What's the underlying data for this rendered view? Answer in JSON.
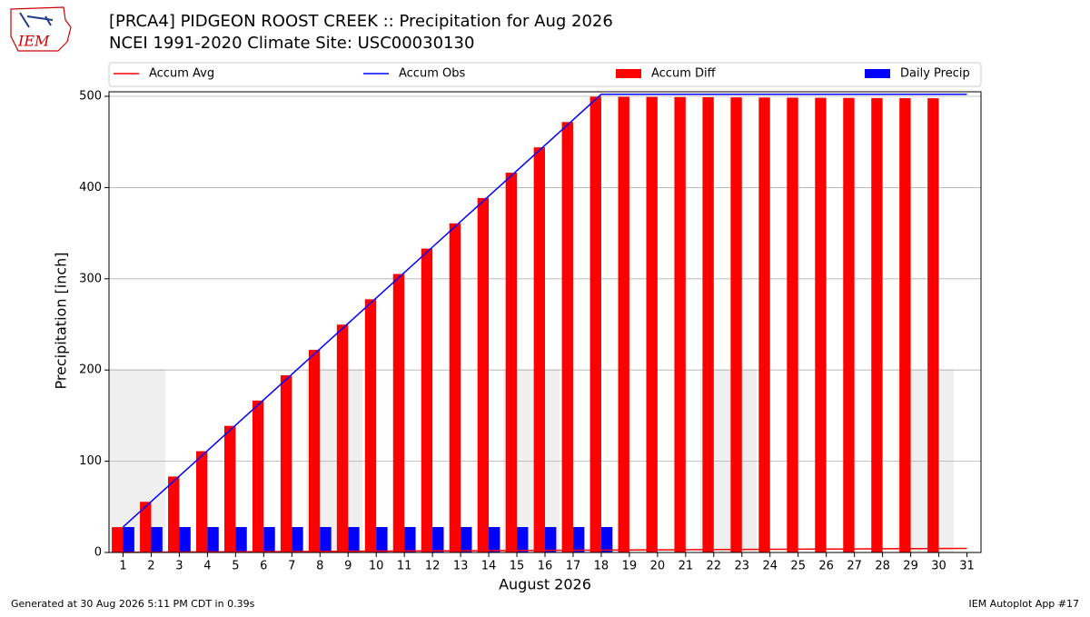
{
  "logo_text": "IEM",
  "footer_left": "Generated at 30 Aug 2026 5:11 PM CDT in 0.39s",
  "footer_right": "IEM Autoplot App #17",
  "chart_data": {
    "type": "bar",
    "title": "[PRCA4] PIDGEON ROOST CREEK :: Precipitation for Aug 2026",
    "subtitle": "NCEI 1991-2020 Climate Site: USC00030130",
    "xlabel": "August 2026",
    "ylabel": "Precipitation [inch]",
    "categories": [
      "1",
      "2",
      "3",
      "4",
      "5",
      "6",
      "7",
      "8",
      "9",
      "10",
      "11",
      "12",
      "13",
      "14",
      "15",
      "16",
      "17",
      "18",
      "19",
      "20",
      "21",
      "22",
      "23",
      "24",
      "25",
      "26",
      "27",
      "28",
      "29",
      "30",
      "31"
    ],
    "series": [
      {
        "name": "Accum Avg",
        "type": "line",
        "color": "#ff0000",
        "values": [
          0.15,
          0.29,
          0.44,
          0.58,
          0.73,
          0.87,
          1.02,
          1.16,
          1.31,
          1.45,
          1.6,
          1.74,
          1.89,
          2.03,
          2.18,
          2.32,
          2.47,
          2.61,
          2.76,
          2.9,
          3.05,
          3.19,
          3.34,
          3.48,
          3.63,
          3.77,
          3.92,
          4.06,
          4.21,
          4.35,
          4.5
        ]
      },
      {
        "name": "Accum Obs",
        "type": "line",
        "color": "#0000ff",
        "values": [
          27.9,
          55.8,
          83.7,
          111.6,
          139.5,
          167.4,
          195.3,
          223.2,
          251.1,
          279,
          306.9,
          334.8,
          362.7,
          390.6,
          418.5,
          446.4,
          474.3,
          502.2,
          502.2,
          502.2,
          502.2,
          502.2,
          502.2,
          502.2,
          502.2,
          502.2,
          502.2,
          502.2,
          502.2,
          502.2,
          502.2
        ]
      },
      {
        "name": "Accum Diff",
        "type": "bar",
        "color": "#ff0000",
        "values": [
          27.75,
          55.51,
          83.26,
          111.02,
          138.77,
          166.53,
          194.28,
          222.04,
          249.79,
          277.55,
          305.3,
          333.06,
          360.81,
          388.57,
          416.32,
          444.08,
          471.83,
          499.59,
          499.44,
          499.3,
          499.15,
          499.01,
          498.86,
          498.72,
          498.57,
          498.43,
          498.28,
          498.14,
          497.99,
          497.85,
          null
        ]
      },
      {
        "name": "Daily Precip",
        "type": "bar",
        "color": "#0000ff",
        "values": [
          27.9,
          27.9,
          27.9,
          27.9,
          27.9,
          27.9,
          27.9,
          27.9,
          27.9,
          27.9,
          27.9,
          27.9,
          27.9,
          27.9,
          27.9,
          27.9,
          27.9,
          27.9,
          0,
          0,
          0,
          0,
          0,
          0,
          0,
          0,
          0,
          0,
          0,
          0,
          null
        ]
      }
    ],
    "ylim": [
      0,
      505
    ],
    "yticks": [
      0,
      100,
      200,
      300,
      400,
      500
    ],
    "grid": true,
    "legend": "top"
  }
}
